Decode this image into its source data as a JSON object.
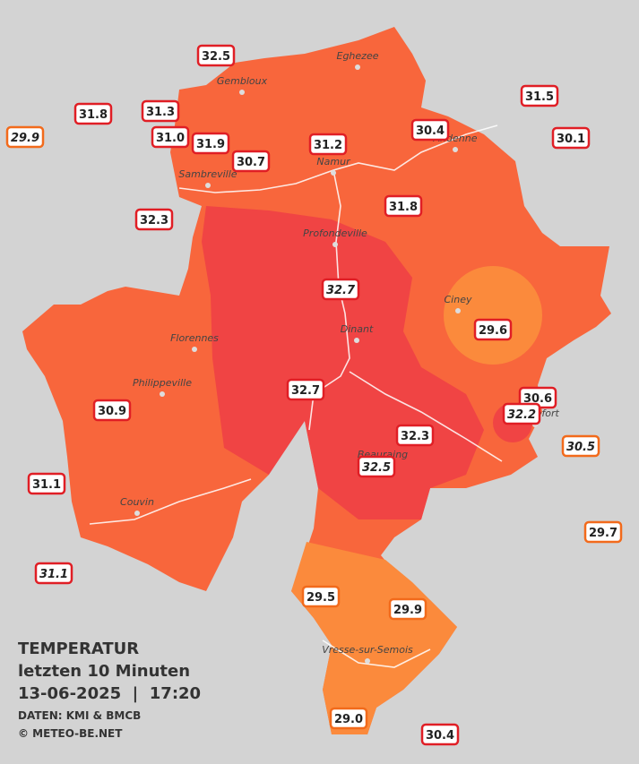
{
  "header": {
    "title": "TEMPERATUR",
    "subtitle": "letzten 10 Minuten",
    "datetime": "13-06-2025  |  17:20",
    "source": "DATEN: KMI & BMCB",
    "copyright": "© METEO-BE.NET"
  },
  "cities": [
    "Eghezee",
    "Gembloux",
    "Andenne",
    "Namur",
    "Sambreville",
    "Profondeville",
    "Ciney",
    "Florennes",
    "Dinant",
    "Philippeville",
    "Rochefort",
    "Beauraing",
    "Couvin",
    "Vresse-sur-Semois"
  ],
  "stations": [
    "32.5",
    "31.8",
    "31.3",
    "29.9",
    "31.0",
    "31.9",
    "30.7",
    "31.2",
    "30.4",
    "31.5",
    "30.1",
    "31.8",
    "32.3",
    "32.7",
    "29.6",
    "32.7",
    "30.6",
    "32.2",
    "30.9",
    "32.3",
    "30.5",
    "32.5",
    "31.1",
    "29.7",
    "31.1",
    "29.5",
    "29.9",
    "29.0",
    "30.4"
  ]
}
